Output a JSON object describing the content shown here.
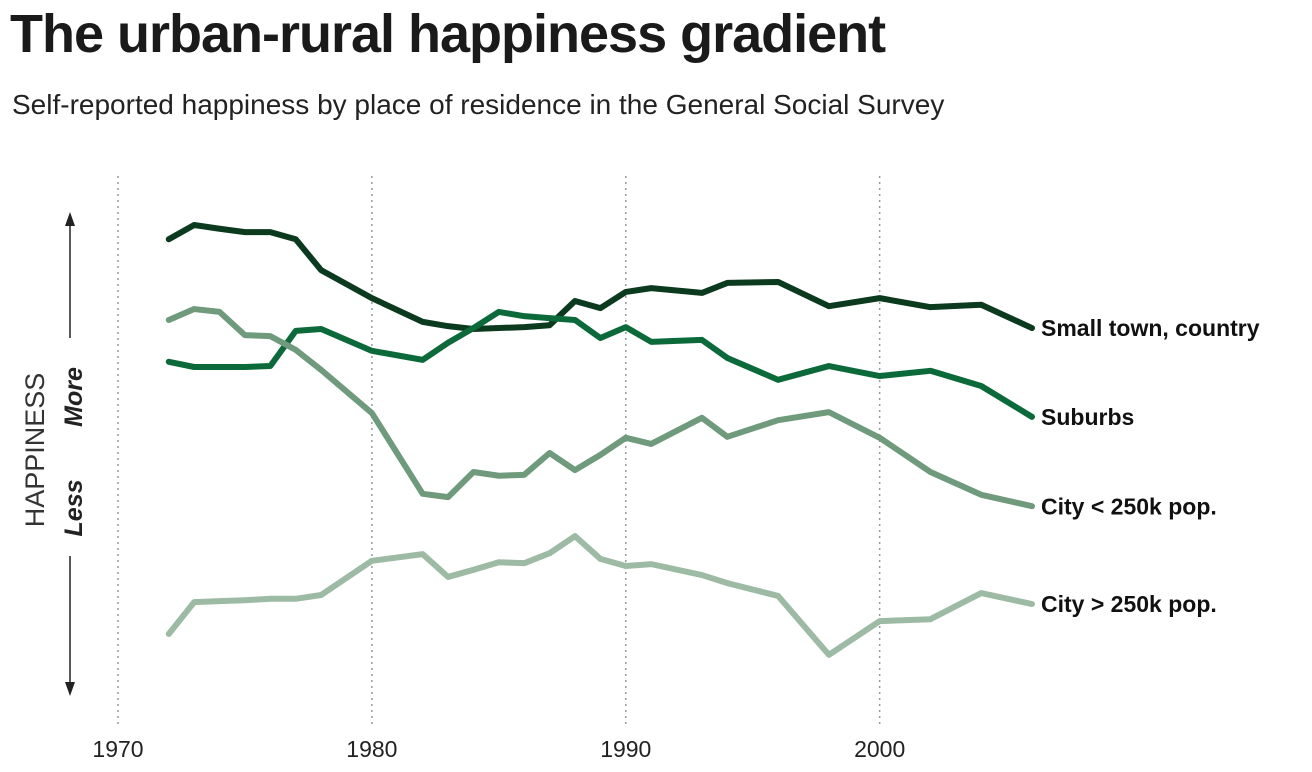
{
  "chart_data": {
    "type": "line",
    "title": "The urban-rural happiness gradient",
    "subtitle": "Self-reported happiness by place of residence in the General Social Survey",
    "y_label": "HAPPINESS",
    "y_label_high": "More",
    "y_label_low": "Less",
    "x": [
      1972,
      1973,
      1974,
      1975,
      1976,
      1977,
      1978,
      1980,
      1982,
      1983,
      1984,
      1985,
      1986,
      1987,
      1988,
      1989,
      1990,
      1991,
      1993,
      1994,
      1996,
      1998,
      2000,
      2002,
      2004,
      2006
    ],
    "series": [
      {
        "name": "Small town, country",
        "color": "#0b3a1f",
        "values": [
          94.9,
          97.9,
          97.1,
          96.4,
          96.4,
          94.9,
          88.4,
          82.5,
          77.5,
          76.6,
          76.0,
          76.2,
          76.4,
          76.8,
          81.9,
          80.4,
          83.8,
          84.6,
          83.6,
          85.7,
          85.9,
          80.8,
          82.5,
          80.6,
          81.1,
          76.2
        ]
      },
      {
        "name": "Suburbs",
        "color": "#0c6a3a",
        "values": [
          69.1,
          68.0,
          68.0,
          68.0,
          68.2,
          75.6,
          76.0,
          71.4,
          69.5,
          73.1,
          76.2,
          79.6,
          78.7,
          78.3,
          77.9,
          74.1,
          76.4,
          73.3,
          73.7,
          69.9,
          65.3,
          68.2,
          66.1,
          67.2,
          64.0,
          57.5
        ]
      },
      {
        "name": "City < 250k pop.",
        "color": "#6f9a7c",
        "values": [
          77.9,
          80.2,
          79.6,
          74.7,
          74.5,
          71.6,
          67.4,
          58.3,
          41.3,
          40.6,
          45.9,
          45.1,
          45.3,
          49.9,
          46.3,
          49.5,
          53.1,
          51.8,
          57.3,
          53.3,
          56.8,
          58.5,
          53.1,
          45.9,
          41.1,
          38.7
        ]
      },
      {
        "name": "City > 250k pop.",
        "color": "#9dbba4",
        "values": [
          11.8,
          18.5,
          18.7,
          18.9,
          19.2,
          19.2,
          20.0,
          27.2,
          28.6,
          23.8,
          25.3,
          26.9,
          26.7,
          28.8,
          32.4,
          27.6,
          26.1,
          26.5,
          24.2,
          22.5,
          19.8,
          7.4,
          14.5,
          14.9,
          20.4,
          18.1
        ]
      }
    ],
    "xlim": [
      1970,
      2006
    ],
    "xticks": [
      1970,
      1980,
      1990,
      2000
    ],
    "ylim": [
      0,
      100
    ],
    "grid": true
  }
}
